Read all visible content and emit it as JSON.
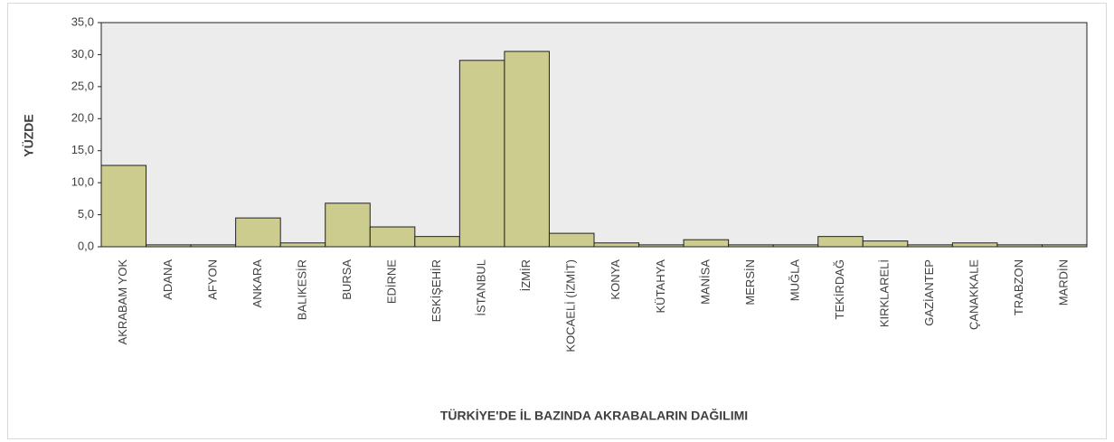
{
  "chart_data": {
    "type": "bar",
    "x_label": "TÜRKİYE'DE İL BAZINDA AKRABALARIN DAĞILIMI",
    "y_label": "YÜZDE",
    "categories": [
      "AKRABAM YOK",
      "ADANA",
      "AFYON",
      "ANKARA",
      "BALIKESİR",
      "BURSA",
      "EDİRNE",
      "ESKİŞEHİR",
      "İSTANBUL",
      "İZMİR",
      "KOCAELİ (İZMİT)",
      "KONYA",
      "KÜTAHYA",
      "MANİSA",
      "MERSİN",
      "MUĞLA",
      "TEKİRDAĞ",
      "KIRKLARELİ",
      "GAZİANTEP",
      "ÇANAKKALE",
      "TRABZON",
      "MARDİN"
    ],
    "values": [
      12.7,
      0.3,
      0.3,
      4.5,
      0.6,
      6.8,
      3.1,
      1.6,
      29.1,
      30.5,
      2.1,
      0.6,
      0.3,
      1.1,
      0.3,
      0.3,
      1.6,
      0.9,
      0.3,
      0.6,
      0.3,
      0.3
    ],
    "color": "#cccc8f",
    "ylim": [
      0,
      35
    ],
    "yticks": [
      {
        "value": 0,
        "label": "0,0"
      },
      {
        "value": 5,
        "label": "5,0"
      },
      {
        "value": 10,
        "label": "10,0"
      },
      {
        "value": 15,
        "label": "15,0"
      },
      {
        "value": 20,
        "label": "20,0"
      },
      {
        "value": 25,
        "label": "25,0"
      },
      {
        "value": 30,
        "label": "30,0"
      },
      {
        "value": 35,
        "label": "35,0"
      }
    ],
    "grid": false
  }
}
